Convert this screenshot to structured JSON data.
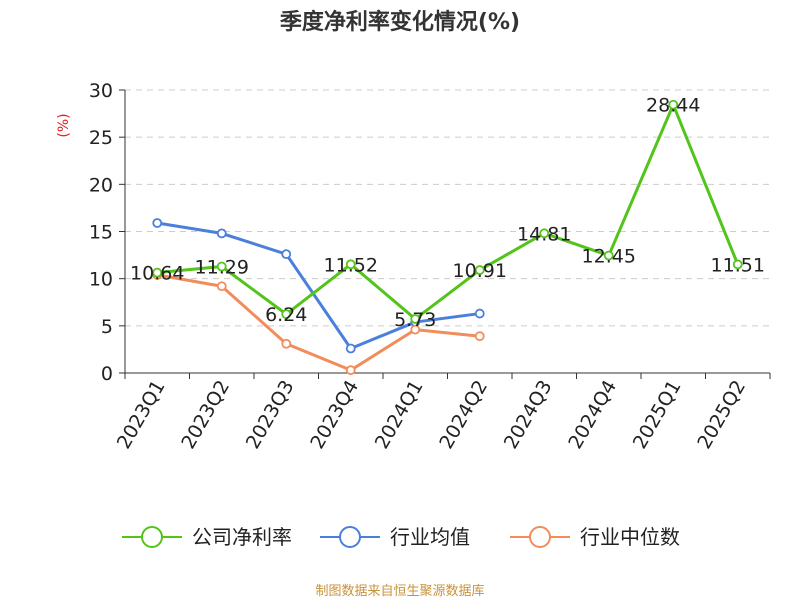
{
  "chart_data": {
    "type": "line",
    "title": "季度净利率变化情况(%)",
    "ylabel": "(%)",
    "ylim": [
      0,
      30
    ],
    "yticks": [
      0,
      5,
      10,
      15,
      20,
      25,
      30
    ],
    "grid": true,
    "legend_position": "bottom",
    "categories": [
      "2023Q1",
      "2023Q2",
      "2023Q3",
      "2023Q4",
      "2024Q1",
      "2024Q2",
      "2024Q3",
      "2024Q4",
      "2025Q1",
      "2025Q2"
    ],
    "series": [
      {
        "name": "公司净利率",
        "color": "#52c41a",
        "values": [
          10.64,
          11.29,
          6.24,
          11.52,
          5.73,
          10.91,
          14.81,
          12.45,
          28.44,
          11.51
        ],
        "labels": [
          "10.64",
          "11.29",
          "6.24",
          "11.52",
          "5.73",
          "10.91",
          "14.81",
          "12.45",
          "28.44",
          "11.51"
        ]
      },
      {
        "name": "行业均值",
        "color": "#4a7fdc",
        "values": [
          15.9,
          14.8,
          12.6,
          2.6,
          5.4,
          6.3,
          null,
          null,
          null,
          null
        ]
      },
      {
        "name": "行业中位数",
        "color": "#f28c5a",
        "values": [
          10.4,
          9.2,
          3.1,
          0.3,
          4.6,
          3.9,
          null,
          null,
          null,
          null
        ]
      }
    ]
  },
  "footer": {
    "source": "制图数据来自恒生聚源数据库"
  }
}
